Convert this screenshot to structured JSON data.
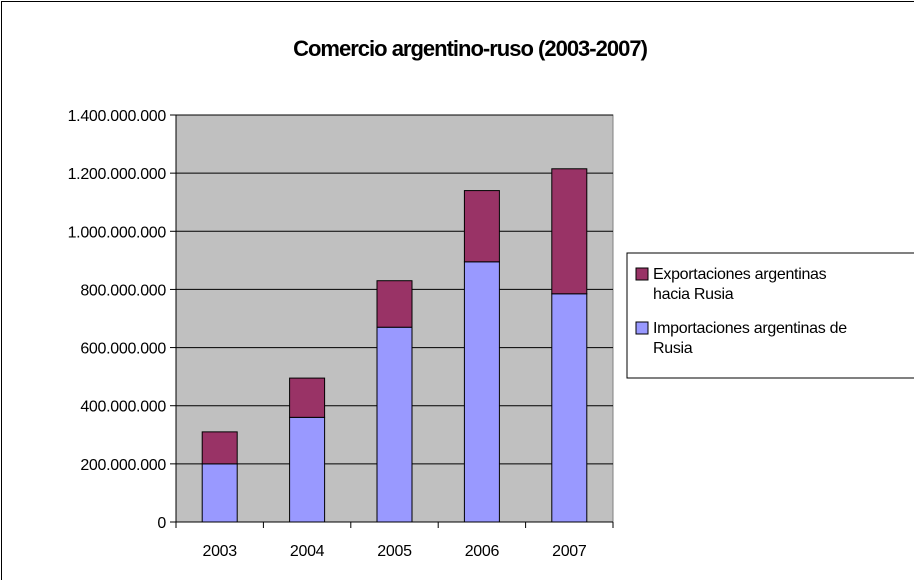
{
  "chart_data": {
    "type": "bar",
    "stacked": true,
    "title": "Comercio argentino-ruso (2003-2007)",
    "categories": [
      "2003",
      "2004",
      "2005",
      "2006",
      "2007"
    ],
    "series": [
      {
        "name": "Importaciones argentinas de Rusia",
        "values": [
          200000000,
          360000000,
          670000000,
          895000000,
          785000000
        ],
        "color": "#9999ff"
      },
      {
        "name": "Exportaciones argentinas hacia Rusia",
        "values": [
          110000000,
          135000000,
          160000000,
          245000000,
          430000000
        ],
        "color": "#993366"
      }
    ],
    "legend": {
      "position": "right",
      "entries": [
        {
          "line1": "Exportaciones argentinas",
          "line2": "hacia Rusia",
          "color": "#993366"
        },
        {
          "line1": "Importaciones argentinas de",
          "line2": "Rusia",
          "color": "#9999ff"
        }
      ]
    },
    "ylim": [
      0,
      1400000000
    ],
    "yticks": [
      "0",
      "200.000.000",
      "400.000.000",
      "600.000.000",
      "800.000.000",
      "1.000.000.000",
      "1.200.000.000",
      "1.400.000.000"
    ],
    "grid": true,
    "plot_background": "#c0c0c0"
  }
}
